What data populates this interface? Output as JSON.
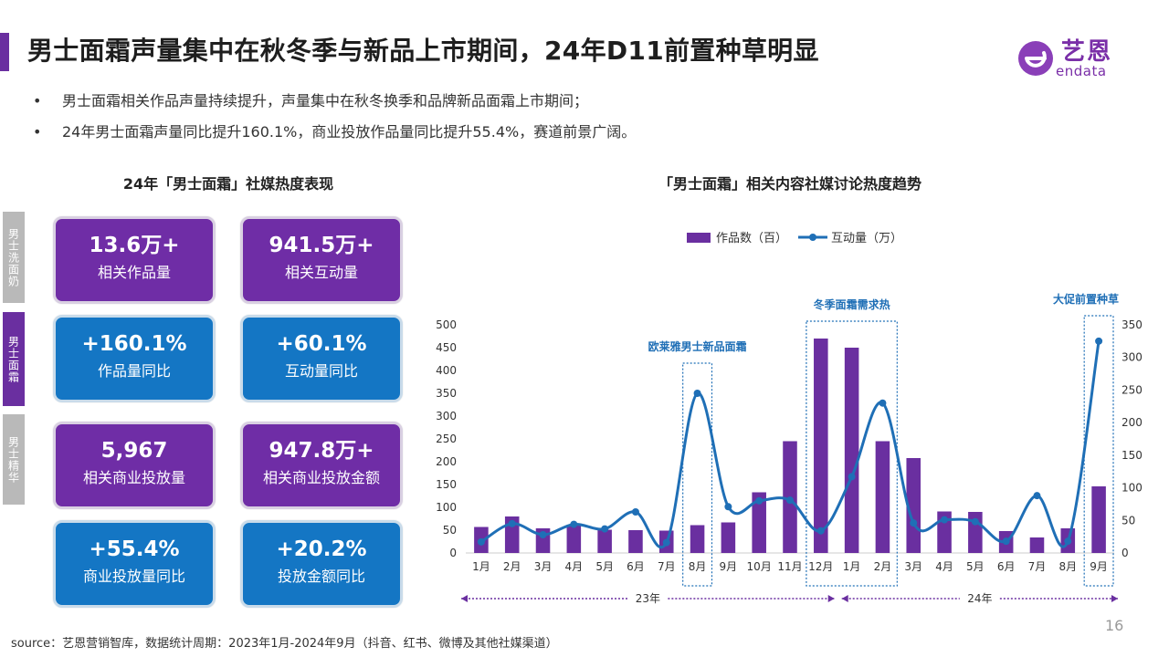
{
  "header": {
    "title": "男士面霜声量集中在秋冬季与新品上市期间，24年D11前置种草明显"
  },
  "logo": {
    "name": "艺恩",
    "sub": "endata"
  },
  "bullets": [
    "男士面霜相关作品声量持续提升，声量集中在秋冬换季和品牌新品面霜上市期间；",
    "24年男士面霜声量同比提升160.1%，商业投放作品量同比提升55.4%，赛道前景广阔。"
  ],
  "left_panel": {
    "title": "24年「男士面霜」社媒热度表现",
    "tabs": [
      "男士洗面奶",
      "男士面霜",
      "男士精华"
    ],
    "cards": [
      {
        "value": "13.6万+",
        "label": "相关作品量"
      },
      {
        "value": "941.5万+",
        "label": "相关互动量"
      },
      {
        "value": "+160.1%",
        "label": "作品量同比"
      },
      {
        "value": "+60.1%",
        "label": "互动量同比"
      },
      {
        "value": "5,967",
        "label": "相关商业投放量"
      },
      {
        "value": "947.8万+",
        "label": "相关商业投放金额"
      },
      {
        "value": "+55.4%",
        "label": "商业投放量同比"
      },
      {
        "value": "+20.2%",
        "label": "投放金额同比"
      }
    ]
  },
  "colors": {
    "purple": "#6f2da6",
    "blue": "#1476c4",
    "bar": "#6a2fa0",
    "line": "#1f6fb6"
  },
  "chart_data": {
    "type": "bar",
    "title": "「男士面霜」相关内容社媒讨论热度趋势",
    "categories": [
      "1月",
      "2月",
      "3月",
      "4月",
      "5月",
      "6月",
      "7月",
      "8月",
      "9月",
      "10月",
      "11月",
      "12月",
      "1月",
      "2月",
      "3月",
      "4月",
      "5月",
      "6月",
      "7月",
      "8月",
      "9月"
    ],
    "series": [
      {
        "name": "作品数（百）",
        "type": "bar",
        "axis": "left",
        "values": [
          57,
          80,
          54,
          60,
          51,
          50,
          49,
          61,
          67,
          133,
          245,
          470,
          450,
          245,
          208,
          91,
          90,
          48,
          34,
          54,
          146
        ]
      },
      {
        "name": "互动量（万）",
        "type": "line",
        "axis": "right",
        "values": [
          17,
          45,
          28,
          44,
          37,
          63,
          16,
          245,
          71,
          80,
          81,
          34,
          117,
          230,
          46,
          51,
          48,
          18,
          88,
          18,
          325
        ]
      }
    ],
    "yleft_ticks": [
      "500",
      "450",
      "400",
      "350",
      "300",
      "250",
      "200",
      "150",
      "100",
      "50",
      "0"
    ],
    "yright_ticks": [
      "350",
      "300",
      "250",
      "200",
      "150",
      "100",
      "50",
      "0"
    ],
    "ylim_left": [
      0,
      500
    ],
    "ylim_right": [
      0,
      350
    ],
    "legend_position": "top-center",
    "year_labels": [
      "23年",
      "24年"
    ],
    "annotations": [
      {
        "label": "欧莱雅男士新品面霜",
        "from": 7,
        "to": 7
      },
      {
        "label": "冬季面霜需求热",
        "from": 11,
        "to": 13
      },
      {
        "label": "大促前置种草",
        "from": 20,
        "to": 20
      }
    ]
  },
  "footer": {
    "page": "16",
    "source": "source：艺恩营销智库，数据统计周期：2023年1月-2024年9月（抖音、红书、微博及其他社媒渠道）"
  }
}
